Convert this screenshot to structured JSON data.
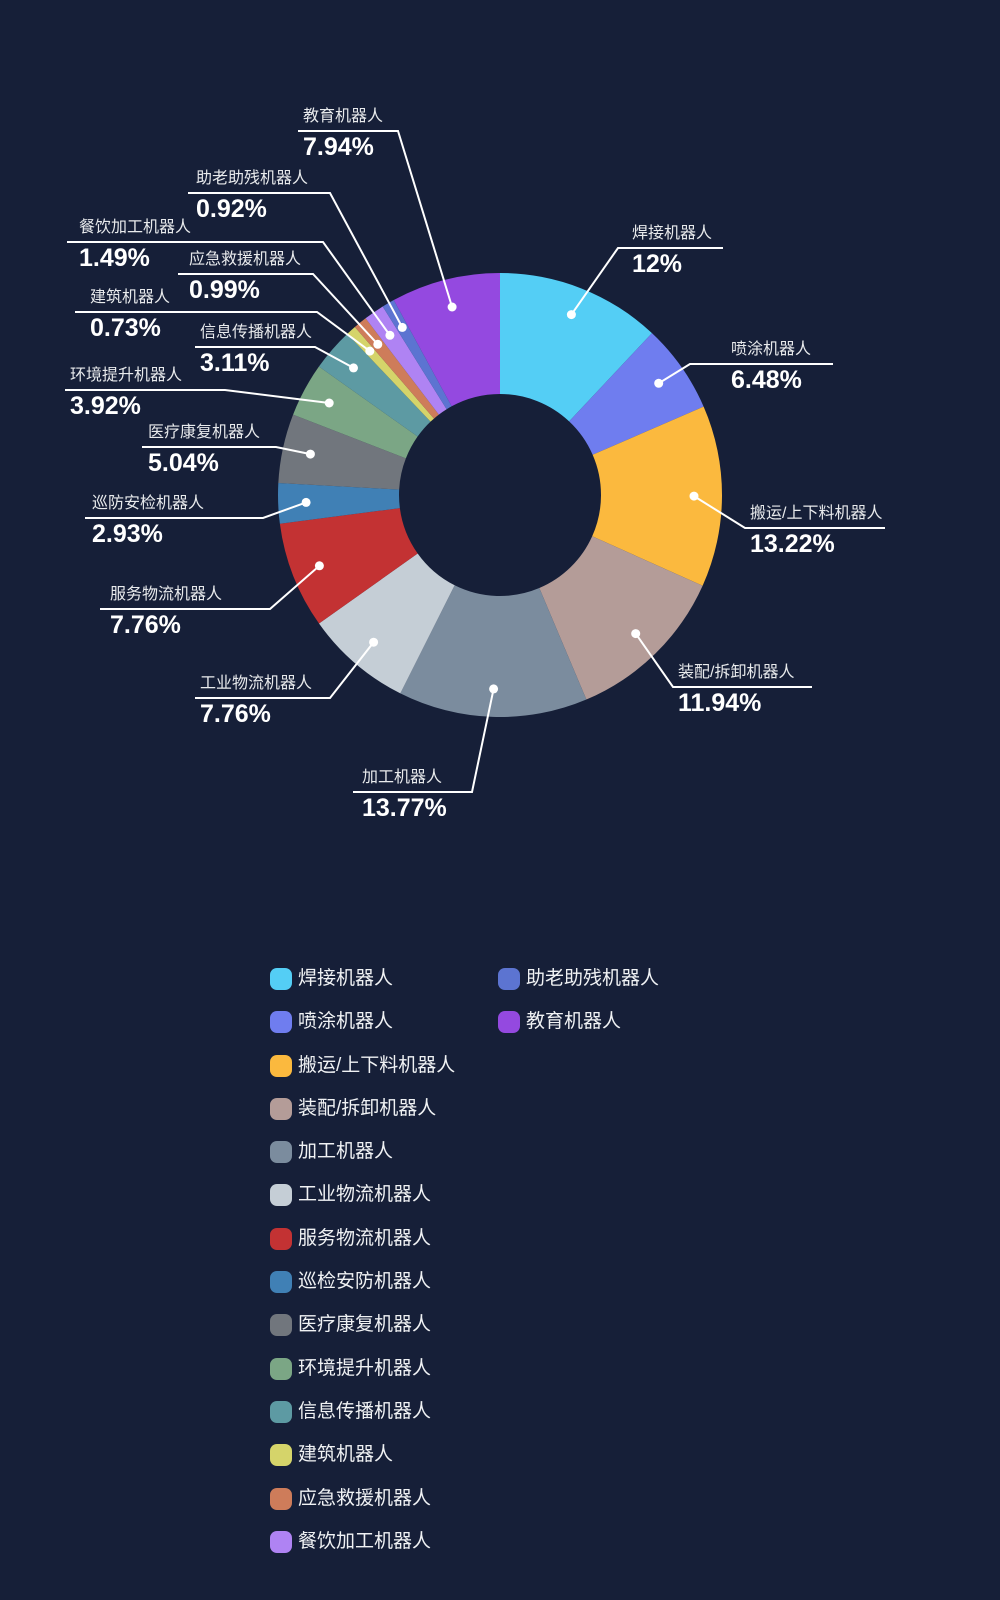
{
  "background_color": "#161F38",
  "chart_data": {
    "type": "pie",
    "title": "",
    "donut": true,
    "start_angle": "top",
    "direction": "clockwise",
    "unit": "%",
    "slices": [
      {
        "name": "焊接机器人",
        "value": 12,
        "value_label": "12%",
        "color": "#54CEF5"
      },
      {
        "name": "喷涂机器人",
        "value": 6.48,
        "value_label": "6.48%",
        "color": "#6F7DEF"
      },
      {
        "name": "搬运/上下料机器人",
        "value": 13.22,
        "value_label": "13.22%",
        "color": "#FBB93E"
      },
      {
        "name": "装配/拆卸机器人",
        "value": 11.94,
        "value_label": "11.94%",
        "color": "#B49C98"
      },
      {
        "name": "加工机器人",
        "value": 13.77,
        "value_label": "13.77%",
        "color": "#7B8C9E"
      },
      {
        "name": "工业物流机器人",
        "value": 7.76,
        "value_label": "7.76%",
        "color": "#C5CED6"
      },
      {
        "name": "服务物流机器人",
        "value": 7.76,
        "value_label": "7.76%",
        "color": "#C33233"
      },
      {
        "name": "巡防安检机器人",
        "value": 2.93,
        "value_label": "2.93%",
        "color": "#4080B5"
      },
      {
        "name": "医疗康复机器人",
        "value": 5.04,
        "value_label": "5.04%",
        "color": "#71767D"
      },
      {
        "name": "环境提升机器人",
        "value": 3.92,
        "value_label": "3.92%",
        "color": "#7BA685"
      },
      {
        "name": "信息传播机器人",
        "value": 3.11,
        "value_label": "3.11%",
        "color": "#5D9AA3"
      },
      {
        "name": "建筑机器人",
        "value": 0.73,
        "value_label": "0.73%",
        "color": "#D5D46A"
      },
      {
        "name": "应急救援机器人",
        "value": 0.99,
        "value_label": "0.99%",
        "color": "#CE7C5A"
      },
      {
        "name": "餐饮加工机器人",
        "value": 1.49,
        "value_label": "1.49%",
        "color": "#AF83F3"
      },
      {
        "name": "助老助残机器人",
        "value": 0.92,
        "value_label": "0.92%",
        "color": "#5C74D1"
      },
      {
        "name": "教育机器人",
        "value": 7.94,
        "value_label": "7.94%",
        "color": "#9449E0"
      }
    ]
  },
  "legend": {
    "columns": [
      {
        "items": [
          {
            "label": "焊接机器人",
            "color": "#54CEF5"
          },
          {
            "label": "喷涂机器人",
            "color": "#6F7DEF"
          },
          {
            "label": "搬运/上下料机器人",
            "color": "#FBB93E"
          },
          {
            "label": "装配/拆卸机器人",
            "color": "#B49C98"
          },
          {
            "label": "加工机器人",
            "color": "#7B8C9E"
          },
          {
            "label": "工业物流机器人",
            "color": "#C5CED6"
          },
          {
            "label": "服务物流机器人",
            "color": "#C33233"
          },
          {
            "label": "巡检安防机器人",
            "color": "#4080B5"
          },
          {
            "label": "医疗康复机器人",
            "color": "#71767D"
          },
          {
            "label": "环境提升机器人",
            "color": "#7BA685"
          },
          {
            "label": "信息传播机器人",
            "color": "#5D9AA3"
          },
          {
            "label": "建筑机器人",
            "color": "#D5D46A"
          },
          {
            "label": "应急救援机器人",
            "color": "#CE7C5A"
          },
          {
            "label": "餐饮加工机器人",
            "color": "#AF83F3"
          }
        ]
      },
      {
        "items": [
          {
            "label": "助老助残机器人",
            "color": "#5C74D1"
          },
          {
            "label": "教育机器人",
            "color": "#9449E0"
          }
        ]
      }
    ]
  }
}
